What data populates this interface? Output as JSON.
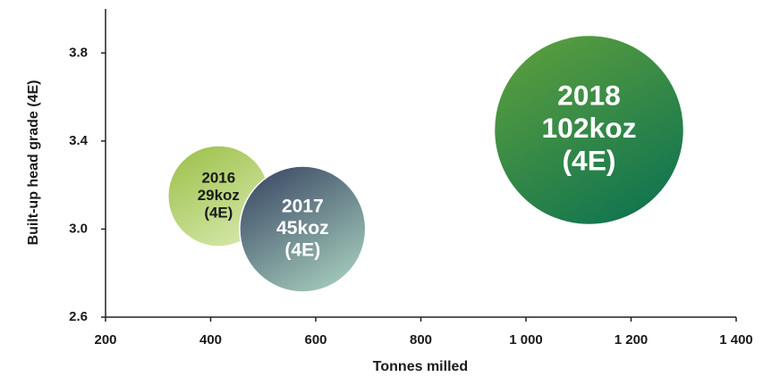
{
  "chart_data": {
    "type": "bubble",
    "x_label": "Tonnes milled",
    "y_label": "Built-up head grade (4E)",
    "categories": [
      "2016",
      "2017",
      "2018"
    ],
    "x": [
      415,
      575,
      1120
    ],
    "values": [
      3.15,
      3.0,
      3.45
    ],
    "sizes": [
      29,
      45,
      102
    ],
    "size_labels": [
      "29koz",
      "45koz",
      "102koz"
    ],
    "bubble_note": "(4E)",
    "colors": [
      [
        "#9fc24e",
        "#d6e8ab"
      ],
      [
        "#3d4c66",
        "#a6cdbd"
      ],
      [
        "#5a9e3e",
        "#0f7350"
      ]
    ],
    "label_colors": [
      "#1a1a1a",
      "#ffffff",
      "#ffffff"
    ],
    "xlim": [
      200,
      1400
    ],
    "xticks": [
      200,
      400,
      600,
      800,
      {
        "value": 1000,
        "label": "1 000"
      },
      {
        "value": 1200,
        "label": "1 200"
      },
      {
        "value": 1400,
        "label": "1 400"
      }
    ],
    "ylim": [
      2.6,
      4.0
    ],
    "yticks": [
      2.6,
      {
        "value": 3.0,
        "label": "3.0"
      },
      3.4,
      3.8
    ],
    "grid": false
  }
}
